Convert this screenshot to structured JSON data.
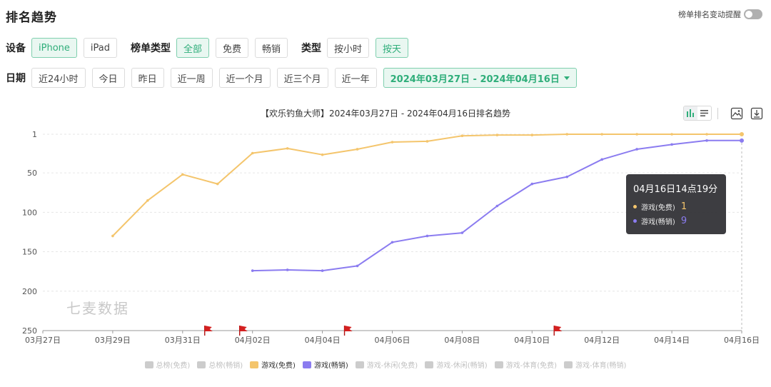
{
  "header": {
    "title": "排名趋势",
    "alert_label": "榜单排名变动提醒"
  },
  "filters": {
    "device_label": "设备",
    "devices": [
      "iPhone",
      "iPad"
    ],
    "device_selected": "iPhone",
    "list_type_label": "榜单类型",
    "list_types": [
      "全部",
      "免费",
      "畅销"
    ],
    "list_type_selected": "全部",
    "type_label": "类型",
    "types": [
      "按小时",
      "按天"
    ],
    "type_selected": "按天",
    "date_label": "日期",
    "date_options": [
      "近24小时",
      "今日",
      "昨日",
      "近一周",
      "近一个月",
      "近三个月",
      "近一年"
    ],
    "date_range": "2024年03月27日 - 2024年04月16日"
  },
  "chart_data": {
    "type": "line",
    "title": "【欢乐钓鱼大师】2024年03月27日 - 2024年04月16日排名趋势",
    "x": [
      "03月27日",
      "03月28日",
      "03月29日",
      "03月30日",
      "03月31日",
      "04月01日",
      "04月02日",
      "04月03日",
      "04月04日",
      "04月05日",
      "04月06日",
      "04月07日",
      "04月08日",
      "04月09日",
      "04月10日",
      "04月11日",
      "04月12日",
      "04月13日",
      "04月14日",
      "04月15日",
      "04月16日"
    ],
    "x_tick_labels": [
      "03月27日",
      "03月29日",
      "03月31日",
      "04月02日",
      "04月04日",
      "04月06日",
      "04月08日",
      "04月10日",
      "04月12日",
      "04月14日",
      "04月16日"
    ],
    "y_ticks": [
      1,
      50,
      100,
      150,
      200,
      250
    ],
    "ylim": [
      1,
      250
    ],
    "y_inverted": true,
    "grid": true,
    "legend_position": "bottom",
    "series": [
      {
        "name": "游戏(免费)",
        "color": "#f4c56c",
        "values": [
          null,
          null,
          130,
          85,
          52,
          64,
          25,
          19,
          27,
          20,
          11,
          10,
          3,
          2,
          2,
          1,
          1,
          1,
          1,
          1,
          1
        ]
      },
      {
        "name": "游戏(畅销)",
        "color": "#8b7cf0",
        "values": [
          null,
          null,
          null,
          null,
          null,
          null,
          174,
          173,
          174,
          168,
          138,
          130,
          126,
          92,
          64,
          55,
          33,
          20,
          14,
          9,
          9
        ]
      }
    ],
    "flag_dates": [
      "04月01日",
      "04月02日",
      "04月05日",
      "04月11日"
    ],
    "watermark": "七麦数据"
  },
  "tooltip": {
    "title": "04月16日14点19分",
    "rows": [
      {
        "name": "游戏(免费)",
        "value": "1",
        "color": "#f4c56c"
      },
      {
        "name": "游戏(畅销)",
        "value": "9",
        "color": "#8b7cf0"
      }
    ]
  },
  "legend": [
    {
      "name": "总榜(免费)",
      "active": false,
      "color": "#cccccc"
    },
    {
      "name": "总榜(畅销)",
      "active": false,
      "color": "#cccccc"
    },
    {
      "name": "游戏(免费)",
      "active": true,
      "color": "#f4c56c"
    },
    {
      "name": "游戏(畅销)",
      "active": true,
      "color": "#8b7cf0"
    },
    {
      "name": "游戏-休闲(免费)",
      "active": false,
      "color": "#cccccc"
    },
    {
      "name": "游戏-休闲(畅销)",
      "active": false,
      "color": "#cccccc"
    },
    {
      "name": "游戏-体育(免费)",
      "active": false,
      "color": "#cccccc"
    },
    {
      "name": "游戏-体育(畅销)",
      "active": false,
      "color": "#cccccc"
    }
  ]
}
